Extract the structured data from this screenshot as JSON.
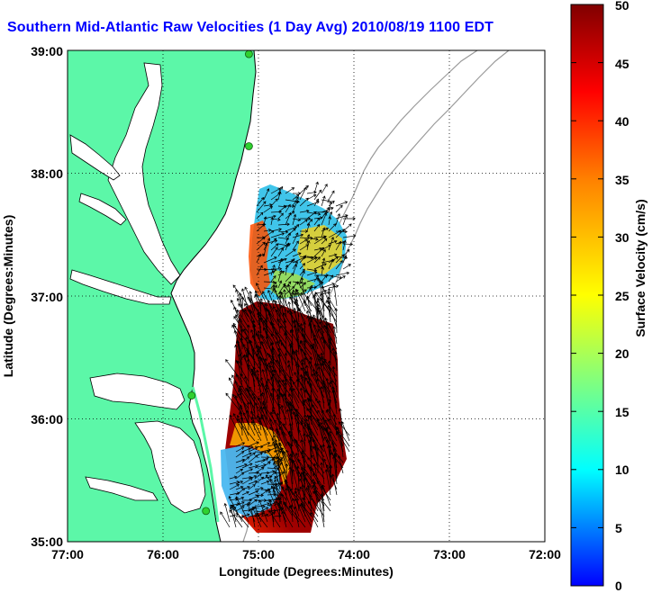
{
  "title": "Southern Mid-Atlantic Raw Velocities (1 Day Avg) 2010/08/19 1100 EDT",
  "x_axis": {
    "label": "Longitude (Degrees:Minutes)",
    "ticks": [
      "77:00",
      "76:00",
      "75:00",
      "74:00",
      "73:00",
      "72:00"
    ]
  },
  "y_axis": {
    "label": "Latitude (Degrees:Minutes)",
    "ticks": [
      "39:00",
      "38:00",
      "37:00",
      "36:00",
      "35:00"
    ]
  },
  "colorbar": {
    "label": "Surface Velocity (cm/s)",
    "ticks": [
      "50",
      "45",
      "40",
      "35",
      "30",
      "25",
      "20",
      "15",
      "10",
      "5",
      "0"
    ],
    "colors": [
      "#0000ff",
      "#00ffff",
      "#ffff00",
      "#ff8000",
      "#ff0000",
      "#800000"
    ]
  },
  "colors": {
    "land": "#5cf7a8",
    "coast": "#000000",
    "bathymetry": "#9a9a9a",
    "station": "#2fd12f"
  },
  "chart_data": {
    "type": "heatmap",
    "xlim": [
      -77,
      -72
    ],
    "ylim": [
      35,
      39
    ],
    "grid": true,
    "stations": [
      {
        "lon": -75.1,
        "lat": 38.97
      },
      {
        "lon": -75.1,
        "lat": 38.22
      },
      {
        "lon": -75.7,
        "lat": 36.19
      },
      {
        "lon": -75.55,
        "lat": 35.25
      }
    ]
  }
}
